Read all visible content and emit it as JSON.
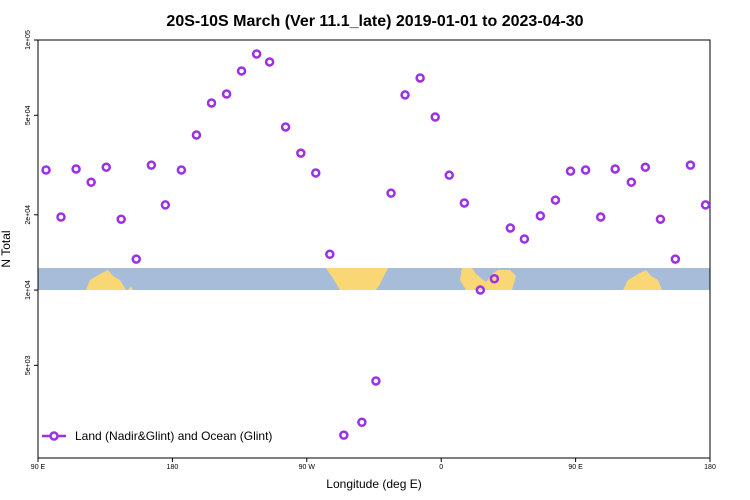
{
  "chart_data": {
    "type": "scatter",
    "title": "20S-10S March (Ver 11.1_late)   2019-01-01 to 2023-04-30",
    "xlabel": "Longitude (deg E)",
    "ylabel": "N Total",
    "log_y": true,
    "legend": "bottom-left",
    "series": [
      {
        "name": "Land (Nadir&Glint) and Ocean (Glint)",
        "color": "#9b30e6",
        "x": [
          95.4,
          105.4,
          115.5,
          125.6,
          135.7,
          145.7,
          155.8,
          165.9,
          175.3,
          186,
          196.1,
          206.2,
          216.3,
          226.3,
          236.4,
          245.1,
          255.8,
          266,
          276,
          285.4,
          294.8,
          306.9,
          316.3,
          326.4,
          335.8,
          345.9,
          356,
          365.4,
          375.5,
          386.2,
          395.6,
          406.3,
          415.7,
          426.4,
          436.5,
          446.6,
          456.7,
          466.8,
          476.5,
          487.3,
          496.7,
          506.8,
          516.8,
          526.9,
          537
        ],
        "values": [
          30200,
          19600,
          30500,
          27000,
          31000,
          19200,
          13300,
          31600,
          21900,
          30200,
          41700,
          56000,
          60800,
          75200,
          87900,
          81700,
          44900,
          35300,
          29400,
          13900,
          2630,
          2960,
          4330,
          24400,
          60300,
          70500,
          49200,
          28800,
          22300,
          10000,
          11100,
          17700,
          16000,
          19800,
          22900,
          29900,
          30200,
          19600,
          30500,
          27000,
          31000,
          19200,
          13300,
          31600,
          21900
        ]
      }
    ],
    "xlim": [
      90,
      540
    ],
    "xticks": [
      {
        "value": 90,
        "label": "90 E"
      },
      {
        "value": 180,
        "label": "180"
      },
      {
        "value": 270,
        "label": "90 W"
      },
      {
        "value": 360,
        "label": "0"
      },
      {
        "value": 450,
        "label": "90 E"
      },
      {
        "value": 540,
        "label": "180"
      }
    ],
    "ylim": [
      2130,
      100000
    ],
    "yticks": [
      {
        "value": 5000,
        "label": "5e+03"
      },
      {
        "value": 10000,
        "label": "1e+04"
      },
      {
        "value": 20000,
        "label": "2e+04"
      },
      {
        "value": 50000,
        "label": "5e+04"
      },
      {
        "value": 100000,
        "label": "1e+05"
      }
    ]
  }
}
